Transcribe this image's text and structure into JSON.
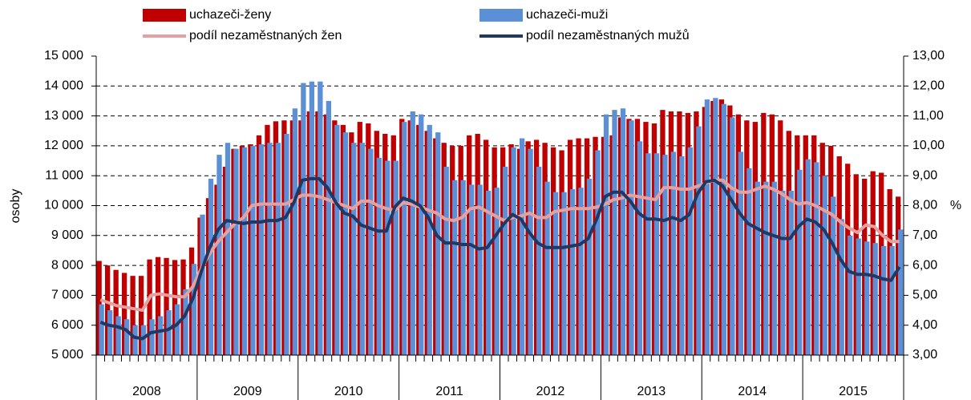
{
  "chart_data": {
    "type": "bar-line",
    "years": [
      "2008",
      "2009",
      "2010",
      "2011",
      "2012",
      "2013",
      "2014",
      "2015"
    ],
    "ylabel": "osoby",
    "y2label": "%",
    "ylim": [
      5000,
      15000
    ],
    "yticks": [
      {
        "value": 5000,
        "label": "5 000"
      },
      {
        "value": 6000,
        "label": "6 000"
      },
      {
        "value": 7000,
        "label": "7 000"
      },
      {
        "value": 8000,
        "label": "8 000"
      },
      {
        "value": 9000,
        "label": "9 000"
      },
      {
        "value": 10000,
        "label": "10 000"
      },
      {
        "value": 11000,
        "label": "11 000"
      },
      {
        "value": 12000,
        "label": "12 000"
      },
      {
        "value": 13000,
        "label": "13 000"
      },
      {
        "value": 14000,
        "label": "14 000"
      },
      {
        "value": 15000,
        "label": "15 000"
      }
    ],
    "y2lim": [
      3,
      13
    ],
    "y2ticks": [
      {
        "value": 3,
        "label": "3,00"
      },
      {
        "value": 4,
        "label": "4,00"
      },
      {
        "value": 5,
        "label": "5,00"
      },
      {
        "value": 6,
        "label": "6,00"
      },
      {
        "value": 7,
        "label": "7,00"
      },
      {
        "value": 8,
        "label": "8,00"
      },
      {
        "value": 9,
        "label": "9,00"
      },
      {
        "value": 10,
        "label": "10,00"
      },
      {
        "value": 11,
        "label": "11,00"
      },
      {
        "value": 12,
        "label": "12,00"
      },
      {
        "value": 13,
        "label": "13,00"
      }
    ],
    "grid": true,
    "series": [
      {
        "name": "uchazeči-ženy",
        "kind": "bar",
        "color": "#c00000",
        "values": [
          8150,
          8000,
          7850,
          7750,
          7650,
          7650,
          8200,
          8280,
          8250,
          8180,
          8200,
          8600,
          9600,
          10250,
          10700,
          11300,
          11900,
          12000,
          12050,
          12350,
          12700,
          12820,
          12850,
          12850,
          12850,
          13150,
          13150,
          13050,
          12850,
          12700,
          12450,
          12800,
          12750,
          12500,
          12400,
          12350,
          12900,
          12850,
          12700,
          12500,
          12250,
          12100,
          12000,
          12000,
          12350,
          12400,
          12200,
          11950,
          11950,
          12050,
          11900,
          12150,
          12200,
          12100,
          11950,
          11850,
          12200,
          12250,
          12250,
          12300,
          12300,
          12350,
          12950,
          12900,
          12900,
          12800,
          12750,
          13200,
          13150,
          13150,
          13100,
          13150,
          13300,
          13500,
          13550,
          13350,
          13050,
          12850,
          12800,
          13100,
          13050,
          12850,
          12500,
          12350,
          12350,
          12350,
          12100,
          12000,
          11650,
          11400,
          11050,
          10900,
          11150,
          11100,
          10550,
          10300
        ]
      },
      {
        "name": "uchazeči-muži",
        "kind": "bar",
        "color": "#5b8fd6",
        "values": [
          6700,
          6500,
          6300,
          6200,
          6000,
          6000,
          6200,
          6300,
          6500,
          6700,
          7200,
          8050,
          9700,
          10900,
          11700,
          12100,
          11900,
          11950,
          12000,
          12050,
          12100,
          12100,
          12400,
          13250,
          14100,
          14150,
          14150,
          13500,
          12700,
          12450,
          12100,
          12100,
          11900,
          11600,
          11500,
          11500,
          12800,
          13150,
          13050,
          12700,
          12450,
          11300,
          10850,
          10850,
          10700,
          10700,
          10500,
          10600,
          11300,
          11950,
          12250,
          11900,
          11300,
          10800,
          10450,
          10450,
          10550,
          10600,
          10900,
          11850,
          13050,
          13200,
          13250,
          12850,
          12150,
          11750,
          11750,
          11700,
          11800,
          11650,
          11950,
          12650,
          13550,
          13600,
          13400,
          12950,
          11800,
          11250,
          10800,
          10800,
          10800,
          10500,
          10500,
          11200,
          11550,
          11450,
          11000,
          10300,
          9550,
          9000,
          8900,
          8800,
          8750,
          8650,
          8650,
          9200
        ]
      },
      {
        "name": "podíl nezaměstnaných žen",
        "kind": "line",
        "axis": "y2",
        "color": "#e6a0a0",
        "values": [
          4.85,
          4.75,
          4.65,
          4.6,
          4.55,
          4.5,
          5.0,
          5.05,
          5.0,
          4.95,
          4.95,
          5.3,
          5.9,
          6.4,
          6.8,
          7.1,
          7.4,
          7.6,
          8.0,
          8.05,
          8.05,
          8.05,
          8.05,
          8.2,
          8.35,
          8.35,
          8.3,
          8.2,
          8.1,
          8.0,
          7.9,
          8.15,
          8.15,
          8.0,
          7.9,
          7.85,
          8.1,
          8.05,
          7.95,
          7.85,
          7.75,
          7.55,
          7.5,
          7.6,
          7.9,
          7.95,
          7.8,
          7.65,
          7.5,
          7.6,
          7.65,
          7.75,
          7.6,
          7.6,
          7.8,
          7.85,
          7.9,
          7.9,
          7.9,
          7.95,
          8.05,
          8.2,
          8.25,
          8.35,
          8.3,
          8.25,
          8.2,
          8.6,
          8.6,
          8.55,
          8.55,
          8.65,
          8.75,
          8.85,
          8.85,
          8.6,
          8.45,
          8.45,
          8.55,
          8.65,
          8.55,
          8.4,
          8.2,
          8.05,
          8.1,
          8.0,
          7.85,
          7.7,
          7.45,
          7.25,
          7.1,
          7.35,
          7.3,
          7.0,
          6.8,
          6.8
        ]
      },
      {
        "name": "podíl nezaměstnaných mužů",
        "kind": "line",
        "axis": "y2",
        "color": "#1f3864",
        "values": [
          4.1,
          4.0,
          3.95,
          3.85,
          3.6,
          3.55,
          3.75,
          3.8,
          3.85,
          4.0,
          4.3,
          4.9,
          5.8,
          6.6,
          7.2,
          7.5,
          7.45,
          7.4,
          7.45,
          7.45,
          7.5,
          7.5,
          7.6,
          8.1,
          8.85,
          8.9,
          8.9,
          8.6,
          8.1,
          7.75,
          7.65,
          7.35,
          7.25,
          7.15,
          7.15,
          7.95,
          8.25,
          8.15,
          8.0,
          7.6,
          7.0,
          6.75,
          6.75,
          6.7,
          6.7,
          6.55,
          6.6,
          7.0,
          7.4,
          7.7,
          7.55,
          7.1,
          6.75,
          6.6,
          6.6,
          6.6,
          6.65,
          6.7,
          6.9,
          7.55,
          8.3,
          8.45,
          8.45,
          8.15,
          7.75,
          7.55,
          7.55,
          7.5,
          7.6,
          7.5,
          7.7,
          8.4,
          8.8,
          8.85,
          8.65,
          8.2,
          7.75,
          7.4,
          7.25,
          7.1,
          7.0,
          6.9,
          6.9,
          7.3,
          7.55,
          7.45,
          7.2,
          6.75,
          6.2,
          5.8,
          5.7,
          5.7,
          5.65,
          5.55,
          5.5,
          5.95
        ]
      }
    ]
  }
}
